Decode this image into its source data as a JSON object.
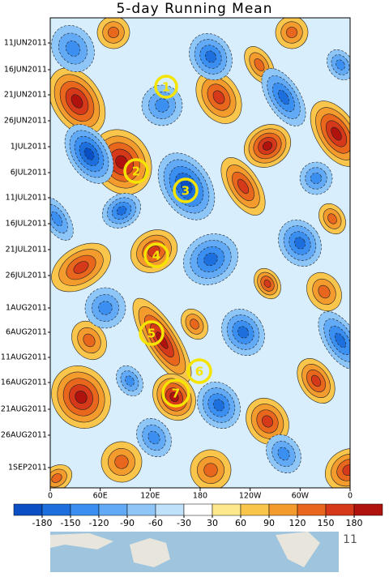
{
  "chart_data": {
    "type": "hovmoller",
    "title": "5-day Running Mean",
    "categories": [
      "11JUN2011",
      "16JUN2011",
      "21JUN2011",
      "26JUN2011",
      "1JUL2011",
      "6JUL2011",
      "11JUL2011",
      "16JUL2011",
      "21JUL2011",
      "26JUL2011",
      "1AUG2011",
      "6AUG2011",
      "11AUG2011",
      "16AUG2011",
      "21AUG2011",
      "26AUG2011",
      "1SEP2011"
    ],
    "xlim": [
      0,
      360
    ],
    "xticks": [
      0,
      {
        "value": 60,
        "label": "60E"
      },
      {
        "value": 120,
        "label": "120E"
      },
      180,
      {
        "value": 240,
        "label": "120W"
      },
      {
        "value": 300,
        "label": "60W"
      },
      {
        "value": 360,
        "label": "0"
      }
    ],
    "levels": [
      -180,
      -150,
      -120,
      -90,
      -60,
      -30,
      30,
      60,
      90,
      120,
      150,
      180
    ],
    "colors": [
      "#0b4fc4",
      "#1c6fdc",
      "#3a8ff0",
      "#62aaf5",
      "#8ec6f8",
      "#bfe1fa",
      "#ffffff",
      "#fde98c",
      "#f9c54b",
      "#f49b2e",
      "#e9661d",
      "#d6381a",
      "#b0120d"
    ],
    "annotations": [
      "1",
      "2",
      "3",
      "4",
      "5",
      "6",
      "7"
    ],
    "map_label": "11"
  }
}
